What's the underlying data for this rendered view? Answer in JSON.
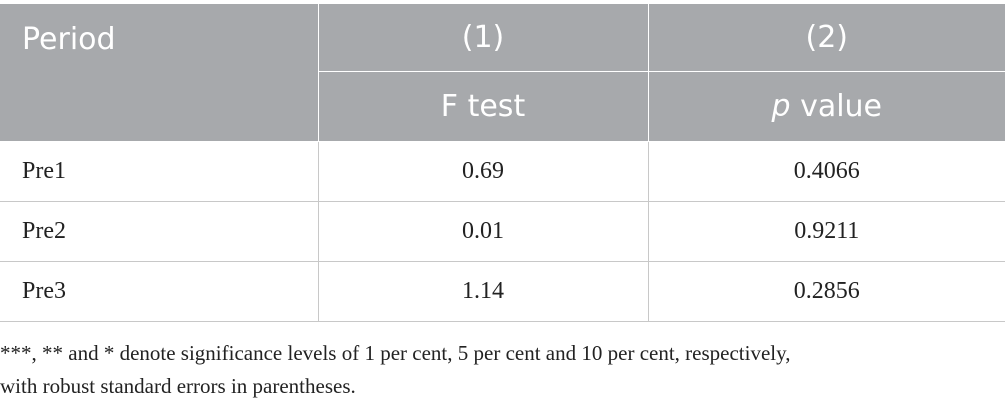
{
  "table": {
    "header": {
      "period_label": "Period",
      "col1_number": "(1)",
      "col2_number": "(2)",
      "col1_label": "F test",
      "col2_label_italic": "p",
      "col2_label_rest": " value"
    },
    "rows": [
      {
        "period": "Pre1",
        "f_test": "0.69",
        "p_value": "0.4066"
      },
      {
        "period": "Pre2",
        "f_test": "0.01",
        "p_value": "0.9211"
      },
      {
        "period": "Pre3",
        "f_test": "1.14",
        "p_value": "0.2856"
      }
    ]
  },
  "footnote": {
    "line1": "***, ** and * denote significance levels of 1 per cent, 5 per cent and 10 per cent, respectively,",
    "line2": "with robust standard errors in parentheses."
  },
  "colors": {
    "header_bg": "#a7a9ac",
    "header_text": "#ffffff",
    "body_text": "#222222",
    "rule": "#c8c8c8"
  }
}
